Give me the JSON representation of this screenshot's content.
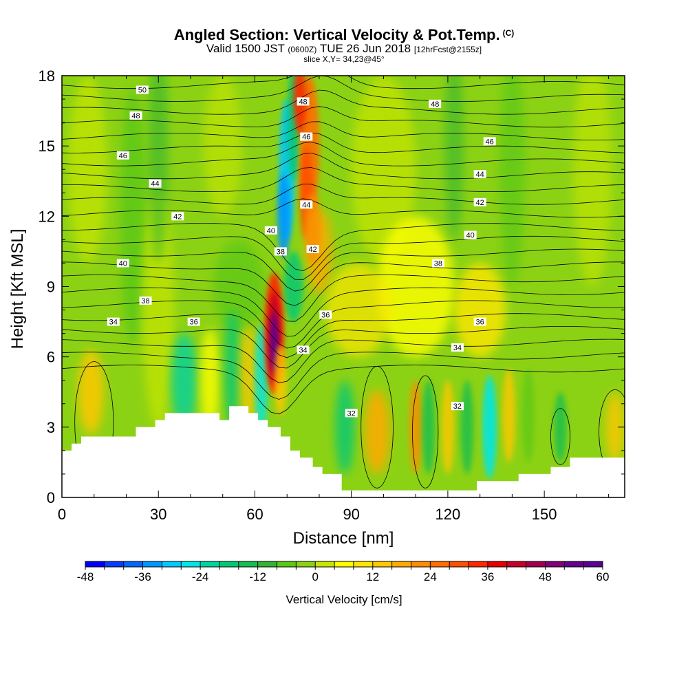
{
  "title": {
    "main": "Angled Section: Vertical Velocity & Pot.Temp.",
    "main_unit": "(C)",
    "valid_prefix": "Valid 1500 JST",
    "valid_utc": "(0600Z)",
    "valid_date": "TUE 26 Jun 2018",
    "valid_fcst": "[12hrFcst@2155z]",
    "slice": "slice X,Y= 34,23@45°"
  },
  "chart_data": {
    "type": "heatmap",
    "title": "Angled Section: Vertical Velocity & Pot.Temp. (C)",
    "xlabel": "Distance [nm]",
    "ylabel": "Height [Kft MSL]",
    "xlim": [
      0,
      175
    ],
    "ylim": [
      0,
      18
    ],
    "x_ticks": [
      0,
      30,
      60,
      90,
      120,
      150
    ],
    "x_tick_labels": [
      "0",
      "30",
      "60",
      "90",
      "120",
      "150"
    ],
    "y_ticks": [
      0,
      3,
      6,
      9,
      12,
      15,
      18
    ],
    "y_tick_labels": [
      "0",
      "3",
      "6",
      "9",
      "12",
      "15",
      "18"
    ],
    "colorbar": {
      "label": "Vertical Velocity [cm/s]",
      "min": -48,
      "max": 60,
      "step": 4,
      "tick_values": [
        -48,
        -36,
        -24,
        -12,
        0,
        12,
        24,
        36,
        48,
        60
      ],
      "tick_labels": [
        "-48",
        "-36",
        "-24",
        "-12",
        "0",
        "12",
        "24",
        "36",
        "48",
        "60"
      ],
      "colors": [
        "#0000ff",
        "#0a3cff",
        "#0066ff",
        "#0096ff",
        "#00c8ff",
        "#00e6e6",
        "#00d2a0",
        "#00c878",
        "#14be50",
        "#32b432",
        "#5ac814",
        "#8cd214",
        "#c8e600",
        "#ffff00",
        "#ffe600",
        "#ffc800",
        "#ffaa00",
        "#ff8c00",
        "#ff6e00",
        "#ff5000",
        "#ff2800",
        "#e60000",
        "#c80028",
        "#a00050",
        "#820078",
        "#64008c",
        "#5a0096"
      ]
    },
    "features": [
      {
        "type": "updraft",
        "x": 66,
        "y_center": 6.8,
        "value": 60
      },
      {
        "type": "updraft",
        "x": 76,
        "y_center": 14.5,
        "value": 40
      },
      {
        "type": "downdraft",
        "x": 69,
        "y_center": 12,
        "value": -36
      },
      {
        "type": "downdraft",
        "x": 133,
        "y_center": 3,
        "value": -28
      },
      {
        "type": "downdraft",
        "x": 40,
        "y_center": 5,
        "value": -24
      }
    ],
    "terrain": [
      [
        0,
        2
      ],
      [
        3,
        2
      ],
      [
        3,
        2.3
      ],
      [
        6,
        2.3
      ],
      [
        6,
        2.6
      ],
      [
        23,
        2.6
      ],
      [
        23,
        3
      ],
      [
        29,
        3
      ],
      [
        29,
        3.3
      ],
      [
        32,
        3.3
      ],
      [
        32,
        3.6
      ],
      [
        49,
        3.6
      ],
      [
        49,
        3.3
      ],
      [
        52,
        3.3
      ],
      [
        52,
        3.9
      ],
      [
        58,
        3.9
      ],
      [
        58,
        3.6
      ],
      [
        61,
        3.6
      ],
      [
        61,
        3.3
      ],
      [
        64,
        3.3
      ],
      [
        64,
        3
      ],
      [
        68,
        3
      ],
      [
        68,
        2.6
      ],
      [
        71,
        2.6
      ],
      [
        71,
        2
      ],
      [
        74,
        2
      ],
      [
        74,
        1.7
      ],
      [
        78,
        1.7
      ],
      [
        78,
        1.3
      ],
      [
        81,
        1.3
      ],
      [
        81,
        1
      ],
      [
        87,
        1
      ],
      [
        87,
        0.3
      ],
      [
        129,
        0.3
      ],
      [
        129,
        0.7
      ],
      [
        142,
        0.7
      ],
      [
        142,
        1
      ],
      [
        152,
        1
      ],
      [
        152,
        1.3
      ],
      [
        158,
        1.3
      ],
      [
        158,
        1.7
      ],
      [
        175,
        1.7
      ]
    ],
    "contour_labels": [
      {
        "text": "50",
        "x": 25,
        "y": 17.4
      },
      {
        "text": "48",
        "x": 23,
        "y": 16.3
      },
      {
        "text": "46",
        "x": 19,
        "y": 14.6
      },
      {
        "text": "44",
        "x": 29,
        "y": 13.4
      },
      {
        "text": "42",
        "x": 36,
        "y": 12.0
      },
      {
        "text": "40",
        "x": 19,
        "y": 10.0
      },
      {
        "text": "38",
        "x": 26,
        "y": 8.4
      },
      {
        "text": "34",
        "x": 16,
        "y": 7.5
      },
      {
        "text": "36",
        "x": 41,
        "y": 7.5
      },
      {
        "text": "48",
        "x": 75,
        "y": 16.9
      },
      {
        "text": "46",
        "x": 76,
        "y": 15.4
      },
      {
        "text": "44",
        "x": 76,
        "y": 12.5
      },
      {
        "text": "40",
        "x": 65,
        "y": 11.4
      },
      {
        "text": "38",
        "x": 68,
        "y": 10.5
      },
      {
        "text": "42",
        "x": 78,
        "y": 10.6
      },
      {
        "text": "36",
        "x": 82,
        "y": 7.8
      },
      {
        "text": "34",
        "x": 75,
        "y": 6.3
      },
      {
        "text": "32",
        "x": 90,
        "y": 3.6
      },
      {
        "text": "48",
        "x": 116,
        "y": 16.8
      },
      {
        "text": "46",
        "x": 133,
        "y": 15.2
      },
      {
        "text": "44",
        "x": 130,
        "y": 13.8
      },
      {
        "text": "42",
        "x": 130,
        "y": 12.6
      },
      {
        "text": "40",
        "x": 127,
        "y": 11.2
      },
      {
        "text": "38",
        "x": 117,
        "y": 10.0
      },
      {
        "text": "36",
        "x": 130,
        "y": 7.5
      },
      {
        "text": "34",
        "x": 123,
        "y": 6.4
      },
      {
        "text": "32",
        "x": 123,
        "y": 3.9
      }
    ]
  }
}
